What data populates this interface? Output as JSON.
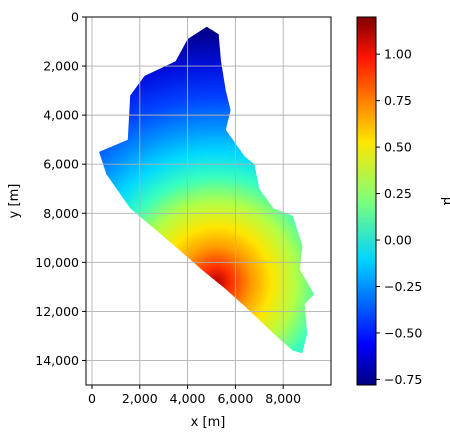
{
  "chart_data": {
    "type": "heatmap",
    "title": "",
    "xlabel": "x [m]",
    "ylabel": "y [m]",
    "xlim": [
      -250,
      10000
    ],
    "ylim": [
      15000,
      0
    ],
    "x_ticks": [
      "0",
      "2,000",
      "4,000",
      "6,000",
      "8,000"
    ],
    "x_tick_values": [
      0,
      2000,
      4000,
      6000,
      8000
    ],
    "y_ticks": [
      "0",
      "2,000",
      "4,000",
      "6,000",
      "8,000",
      "10,000",
      "12,000",
      "14,000"
    ],
    "y_tick_values": [
      0,
      2000,
      4000,
      6000,
      8000,
      10000,
      12000,
      14000
    ],
    "grid": true,
    "colormap": "jet",
    "colorbar": {
      "label": "μ",
      "range": [
        -0.78,
        1.2
      ],
      "ticks": [
        "−0.75",
        "−0.50",
        "−0.25",
        "0.00",
        "0.25",
        "0.50",
        "0.75",
        "1.00"
      ],
      "tick_values": [
        -0.75,
        -0.5,
        -0.25,
        0.0,
        0.25,
        0.5,
        0.75,
        1.0
      ]
    },
    "field": {
      "description_peak_value": 1.2,
      "peak_location": [
        5200,
        10800
      ],
      "min_value": -0.78,
      "min_location": [
        4800,
        600
      ]
    },
    "domain_outline": [
      [
        4800,
        400
      ],
      [
        5300,
        700
      ],
      [
        5400,
        1800
      ],
      [
        5600,
        3000
      ],
      [
        5800,
        3800
      ],
      [
        5600,
        4600
      ],
      [
        6400,
        5700
      ],
      [
        6800,
        6000
      ],
      [
        7000,
        7000
      ],
      [
        7600,
        7800
      ],
      [
        8400,
        8100
      ],
      [
        8800,
        9300
      ],
      [
        8700,
        10300
      ],
      [
        9300,
        11300
      ],
      [
        8900,
        11700
      ],
      [
        9000,
        12900
      ],
      [
        8800,
        13700
      ],
      [
        8400,
        13600
      ],
      [
        7700,
        13000
      ],
      [
        6400,
        11800
      ],
      [
        5600,
        11100
      ],
      [
        4600,
        10300
      ],
      [
        3300,
        9200
      ],
      [
        1600,
        7800
      ],
      [
        600,
        6400
      ],
      [
        300,
        5500
      ],
      [
        1500,
        5000
      ],
      [
        1600,
        3200
      ],
      [
        2200,
        2400
      ],
      [
        3500,
        1800
      ],
      [
        4000,
        900
      ]
    ]
  }
}
